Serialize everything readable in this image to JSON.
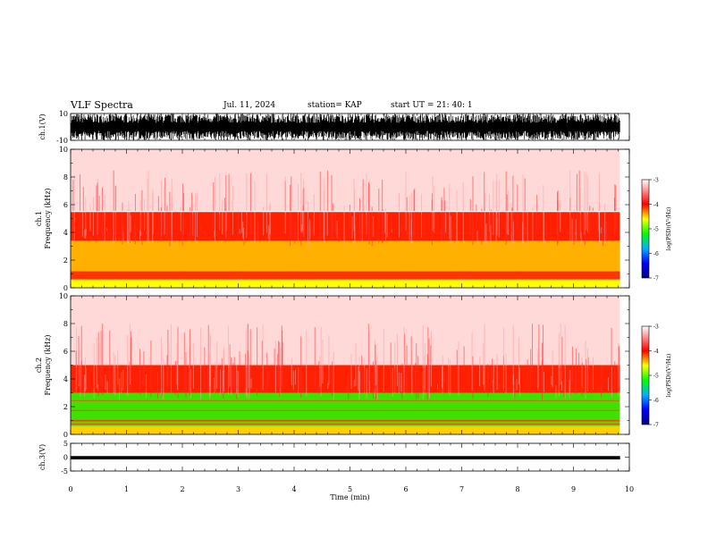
{
  "header": {
    "title": "VLF Spectra",
    "date": "Jul. 11, 2024",
    "station": "station= KAP",
    "start_ut": "start UT =  21: 40: 1"
  },
  "colors": {
    "high_power": "#ff0000",
    "mid_power": "#ffff00",
    "low_power": "#00ff00",
    "lowest_power": "#0000a0",
    "background": "#ffffff",
    "axes": "#000000"
  },
  "chart_data": [
    {
      "type": "line",
      "panel": "ch1-waveform",
      "ylabel": "ch.1(V)",
      "ylim": [
        -10,
        10
      ],
      "yticks": [
        "10",
        "-10"
      ],
      "xlim": [
        0,
        10
      ],
      "x_extent": [
        0,
        9.83
      ],
      "series": [
        {
          "values_range": [
            -10,
            10
          ]
        }
      ]
    },
    {
      "type": "heatmap",
      "panel": "ch1-spectrogram",
      "ylabel": "ch.1\nFrequency (kHz)",
      "ylim": [
        0,
        10
      ],
      "yticks": [
        "0",
        "2",
        "4",
        "6",
        "8",
        "10"
      ],
      "xlim": [
        0,
        10
      ],
      "x_extent": [
        0,
        9.83
      ],
      "bands": [
        {
          "freq": [
            0,
            0.6
          ],
          "color": "#ffff00"
        },
        {
          "freq": [
            0.6,
            1.2
          ],
          "color": "#ff3000"
        },
        {
          "freq": [
            1.2,
            3.4
          ],
          "color": "#ffb000"
        },
        {
          "freq": [
            3.4,
            5.5
          ],
          "color": "#ff2000"
        },
        {
          "freq": [
            5.5,
            10
          ],
          "color": "#ffd8d8"
        }
      ],
      "colorbar": {
        "label": "log(PSD)(V²/Hz)",
        "range": [
          -7,
          -3
        ],
        "ticks": [
          "-3",
          "-4",
          "-5",
          "-6",
          "-7"
        ]
      }
    },
    {
      "type": "heatmap",
      "panel": "ch2-spectrogram",
      "ylabel": "ch.2\nFrequency (kHz)",
      "ylim": [
        0,
        10
      ],
      "yticks": [
        "0",
        "2",
        "4",
        "6",
        "8",
        "10"
      ],
      "xlim": [
        0,
        10
      ],
      "x_extent": [
        0,
        9.83
      ],
      "bands": [
        {
          "freq": [
            0,
            0.6
          ],
          "color": "#ffd000"
        },
        {
          "freq": [
            0.6,
            3.0
          ],
          "color": "#40e000"
        },
        {
          "freq": [
            3.0,
            5.0
          ],
          "color": "#ff2000"
        },
        {
          "freq": [
            5.0,
            10
          ],
          "color": "#ffd8d8"
        }
      ],
      "colorbar": {
        "label": "log(PSD)(V²/Hz)",
        "range": [
          -7,
          -3
        ],
        "ticks": [
          "-3",
          "-4",
          "-5",
          "-6",
          "-7"
        ]
      }
    },
    {
      "type": "line",
      "panel": "ch3-waveform",
      "ylabel": "ch.3(V)",
      "ylim": [
        -5,
        5
      ],
      "yticks": [
        "5",
        "0",
        "-5"
      ],
      "xlabel": "Time (min)",
      "xlim": [
        0,
        10
      ],
      "xticks": [
        "0",
        "1",
        "2",
        "3",
        "4",
        "5",
        "6",
        "7",
        "8",
        "9",
        "10"
      ],
      "x_extent": [
        0,
        9.83
      ],
      "series": [
        {
          "values_range": [
            -0.8,
            0.4
          ]
        }
      ]
    }
  ]
}
